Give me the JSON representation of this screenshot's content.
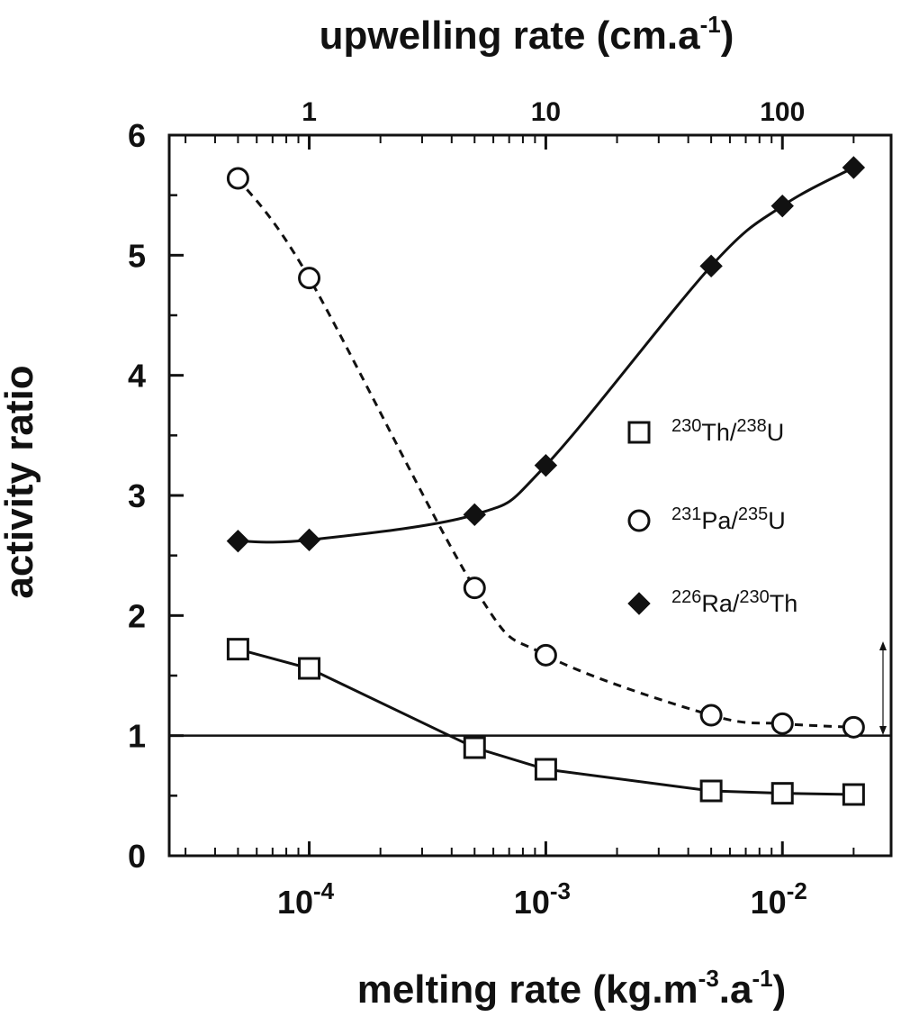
{
  "chart_data": {
    "type": "line",
    "ylabel": "activity ratio",
    "xlabel_bottom": {
      "base": "melting rate (kg.m",
      "exp1": "-3",
      "mid": ".a",
      "exp2": "-1",
      "end": ")"
    },
    "xlabel_top": {
      "base": "upwelling rate (cm.a",
      "exp": "-1",
      "end": ")"
    },
    "x_scale": "log",
    "xlim": [
      2.56e-05,
      0.0288
    ],
    "ylim": [
      0,
      6
    ],
    "y_ticks": [
      "0",
      "1",
      "2",
      "3",
      "4",
      "5",
      "6"
    ],
    "x_bottom_ticks": [
      {
        "value": 0.0001,
        "base": "10",
        "exp": "-4"
      },
      {
        "value": 0.001,
        "base": "10",
        "exp": "-3"
      },
      {
        "value": 0.01,
        "base": "10",
        "exp": "-2"
      }
    ],
    "x_top_ticks": [
      {
        "value": 0.0001,
        "label": "1"
      },
      {
        "value": 0.001,
        "label": "10"
      },
      {
        "value": 0.01,
        "label": "100"
      }
    ],
    "reference_line": 1,
    "series": [
      {
        "key": "th",
        "name": {
          "iso1": "230",
          "el1": "Th/",
          "iso2": "238",
          "el2": "U"
        },
        "marker": "square-open",
        "line": "solid",
        "x": [
          5e-05,
          0.0001,
          0.0005,
          0.001,
          0.005,
          0.01,
          0.02
        ],
        "y": [
          1.72,
          1.56,
          0.9,
          0.72,
          0.54,
          0.52,
          0.51
        ]
      },
      {
        "key": "pa",
        "name": {
          "iso1": "231",
          "el1": "Pa/",
          "iso2": "235",
          "el2": "U"
        },
        "marker": "circle-open",
        "line": "dashed",
        "x": [
          5e-05,
          0.0001,
          0.0005,
          0.001,
          0.005,
          0.01,
          0.02
        ],
        "y": [
          5.64,
          4.81,
          2.23,
          1.67,
          1.17,
          1.1,
          1.07
        ]
      },
      {
        "key": "ra",
        "name": {
          "iso1": "226",
          "el1": "Ra/",
          "iso2": "230",
          "el2": "Th"
        },
        "marker": "diamond-filled",
        "line": "solid",
        "x": [
          5e-05,
          0.0001,
          0.0005,
          0.001,
          0.005,
          0.01,
          0.02
        ],
        "y": [
          2.62,
          2.63,
          2.84,
          3.25,
          4.91,
          5.41,
          5.73
        ]
      }
    ]
  }
}
